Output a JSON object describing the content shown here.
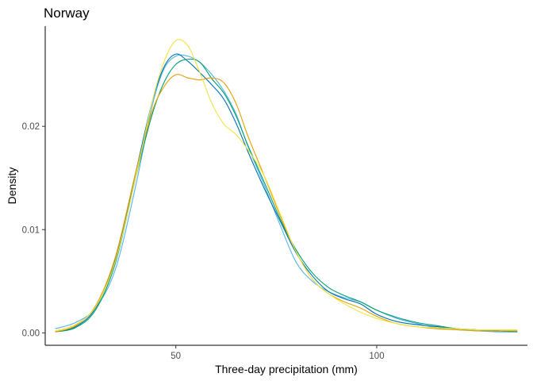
{
  "chart_data": {
    "type": "line",
    "title": "Norway",
    "xlabel": "Three-day precipitation (mm)",
    "ylabel": "Density",
    "xlim": [
      17.5,
      137.5
    ],
    "ylim": [
      -0.0012,
      0.0297
    ],
    "xticks": [
      50,
      100
    ],
    "xtick_labels": [
      "50",
      "100"
    ],
    "yticks": [
      0.0,
      0.01,
      0.02
    ],
    "ytick_labels": [
      "0.00",
      "0.01",
      "0.02"
    ],
    "grid": false,
    "legend": "none",
    "series": [
      {
        "color": "#56B4E9",
        "x": [
          20,
          25,
          30,
          35,
          40,
          44,
          47,
          50,
          53,
          56,
          59,
          62,
          65,
          68,
          72,
          76,
          80,
          84,
          88,
          92,
          96,
          100,
          105,
          110,
          115,
          120,
          125,
          130,
          135
        ],
        "y": [
          0.0004,
          0.001,
          0.0024,
          0.0062,
          0.0142,
          0.0218,
          0.0255,
          0.0268,
          0.0268,
          0.0262,
          0.025,
          0.0234,
          0.0212,
          0.018,
          0.0143,
          0.0104,
          0.0068,
          0.005,
          0.004,
          0.0034,
          0.003,
          0.0022,
          0.0014,
          0.0009,
          0.0005,
          0.0003,
          0.0002,
          0.0001,
          0.0001
        ]
      },
      {
        "color": "#0072B2",
        "x": [
          20,
          25,
          30,
          35,
          40,
          44,
          47,
          50,
          53,
          56,
          59,
          62,
          65,
          68,
          72,
          76,
          80,
          84,
          88,
          92,
          96,
          100,
          105,
          110,
          115,
          120,
          125,
          130,
          135
        ],
        "y": [
          0.0001,
          0.0006,
          0.0024,
          0.0072,
          0.0155,
          0.0222,
          0.0257,
          0.027,
          0.0263,
          0.0252,
          0.024,
          0.0226,
          0.0203,
          0.0175,
          0.014,
          0.0108,
          0.0077,
          0.0055,
          0.004,
          0.0033,
          0.0028,
          0.0018,
          0.0011,
          0.0008,
          0.0006,
          0.0004,
          0.0003,
          0.0002,
          0.0001
        ]
      },
      {
        "color": "#009E73",
        "x": [
          20,
          25,
          30,
          35,
          40,
          44,
          47,
          50,
          53,
          56,
          59,
          62,
          65,
          68,
          72,
          76,
          80,
          84,
          88,
          92,
          96,
          100,
          105,
          110,
          115,
          120,
          125,
          130,
          135
        ],
        "y": [
          0.0001,
          0.0005,
          0.0022,
          0.0068,
          0.015,
          0.021,
          0.0242,
          0.026,
          0.0265,
          0.0262,
          0.0246,
          0.0232,
          0.021,
          0.0181,
          0.0146,
          0.011,
          0.008,
          0.0058,
          0.0044,
          0.0036,
          0.003,
          0.0022,
          0.0015,
          0.001,
          0.0007,
          0.0004,
          0.0003,
          0.0002,
          0.0001
        ]
      },
      {
        "color": "#E69F00",
        "x": [
          20,
          25,
          30,
          35,
          40,
          44,
          47,
          50,
          53,
          56,
          59,
          62,
          65,
          68,
          72,
          76,
          80,
          84,
          88,
          92,
          96,
          100,
          105,
          110,
          115,
          120,
          125,
          130,
          135
        ],
        "y": [
          0.0001,
          0.0007,
          0.0026,
          0.0074,
          0.0155,
          0.0213,
          0.0238,
          0.025,
          0.0247,
          0.0245,
          0.0247,
          0.0242,
          0.0222,
          0.019,
          0.0152,
          0.0113,
          0.0078,
          0.0052,
          0.0038,
          0.003,
          0.0024,
          0.0016,
          0.0009,
          0.0006,
          0.0004,
          0.0003,
          0.0002,
          0.0002,
          0.0002
        ]
      },
      {
        "color": "#F0E442",
        "x": [
          20,
          25,
          30,
          35,
          40,
          44,
          47,
          50,
          53,
          56,
          59,
          62,
          65,
          68,
          72,
          76,
          80,
          84,
          88,
          92,
          96,
          100,
          105,
          110,
          115,
          120,
          125,
          130,
          135
        ],
        "y": [
          0.0002,
          0.0008,
          0.0025,
          0.007,
          0.015,
          0.0222,
          0.0262,
          0.0283,
          0.0278,
          0.0252,
          0.0222,
          0.0202,
          0.0192,
          0.0177,
          0.0152,
          0.0115,
          0.0078,
          0.0052,
          0.0038,
          0.0028,
          0.002,
          0.0014,
          0.0009,
          0.0006,
          0.0005,
          0.0004,
          0.0003,
          0.0003,
          0.0003
        ]
      }
    ]
  }
}
